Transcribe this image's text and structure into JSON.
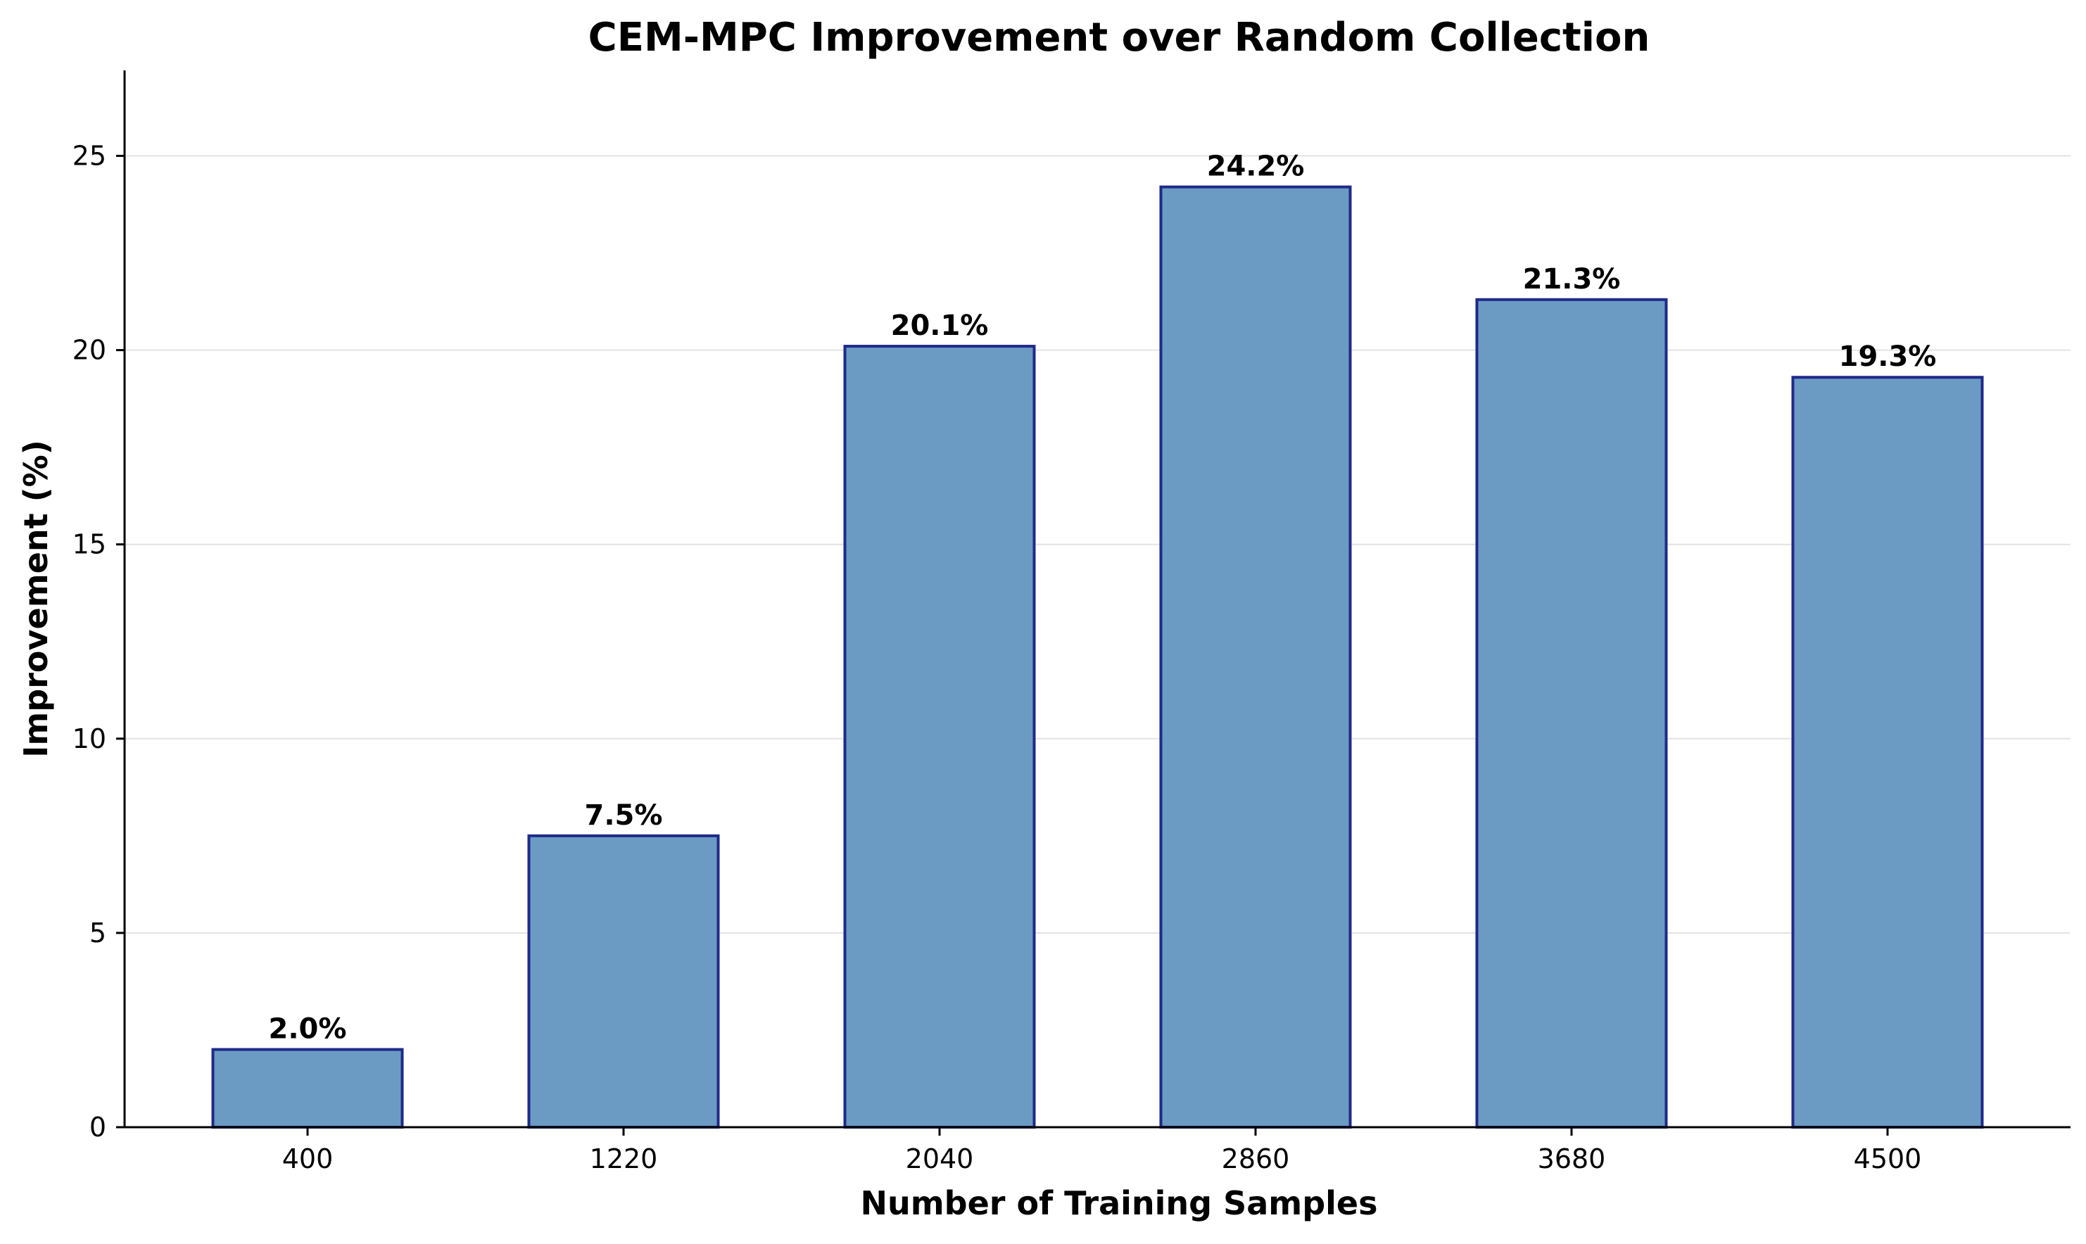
{
  "chart_data": {
    "type": "bar",
    "title": "CEM-MPC Improvement over Random Collection",
    "xlabel": "Number of Training Samples",
    "ylabel": "Improvement (%)",
    "categories": [
      "400",
      "1220",
      "2040",
      "2860",
      "3680",
      "4500"
    ],
    "values": [
      2.0,
      7.5,
      20.1,
      24.2,
      21.3,
      19.3
    ],
    "data_labels": [
      "2.0%",
      "7.5%",
      "20.1%",
      "24.2%",
      "21.3%",
      "19.3%"
    ],
    "ylim": [
      0,
      27.2
    ],
    "yticks": [
      0,
      5,
      10,
      15,
      20,
      25
    ],
    "ytick_labels": [
      "0",
      "5",
      "10",
      "15",
      "20",
      "25"
    ],
    "grid": "horizontal",
    "legend": "none",
    "colors": {
      "bar_fill": "#6b9bc3",
      "bar_edge": "#1f2a8a",
      "grid": "#e3e3e3",
      "axis": "#000000"
    }
  }
}
